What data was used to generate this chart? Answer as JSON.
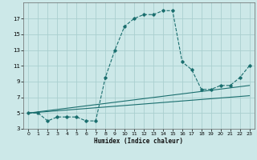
{
  "title": "",
  "xlabel": "Humidex (Indice chaleur)",
  "bg_color": "#cce8e8",
  "grid_color": "#aacfcf",
  "line_color": "#1a6e6e",
  "xlim": [
    -0.5,
    23.5
  ],
  "ylim": [
    3,
    19
  ],
  "xticks": [
    0,
    1,
    2,
    3,
    4,
    5,
    6,
    7,
    8,
    9,
    10,
    11,
    12,
    13,
    14,
    15,
    16,
    17,
    18,
    19,
    20,
    21,
    22,
    23
  ],
  "yticks": [
    3,
    5,
    7,
    9,
    11,
    13,
    15,
    17
  ],
  "line1_x": [
    0,
    1,
    2,
    3,
    4,
    5,
    6,
    7,
    8,
    9,
    10,
    11,
    12,
    13,
    14,
    15,
    16,
    17,
    18,
    19,
    20,
    21,
    22,
    23
  ],
  "line1_y": [
    5,
    5,
    4,
    4.5,
    4.5,
    4.5,
    4,
    4,
    9.5,
    13,
    16,
    17,
    17.5,
    17.5,
    18,
    18,
    11.5,
    10.5,
    8,
    8,
    8.5,
    8.5,
    9.5,
    11
  ],
  "line2_x": [
    0,
    23
  ],
  "line2_y": [
    5,
    8.5
  ],
  "line3_x": [
    0,
    23
  ],
  "line3_y": [
    5,
    7.2
  ]
}
